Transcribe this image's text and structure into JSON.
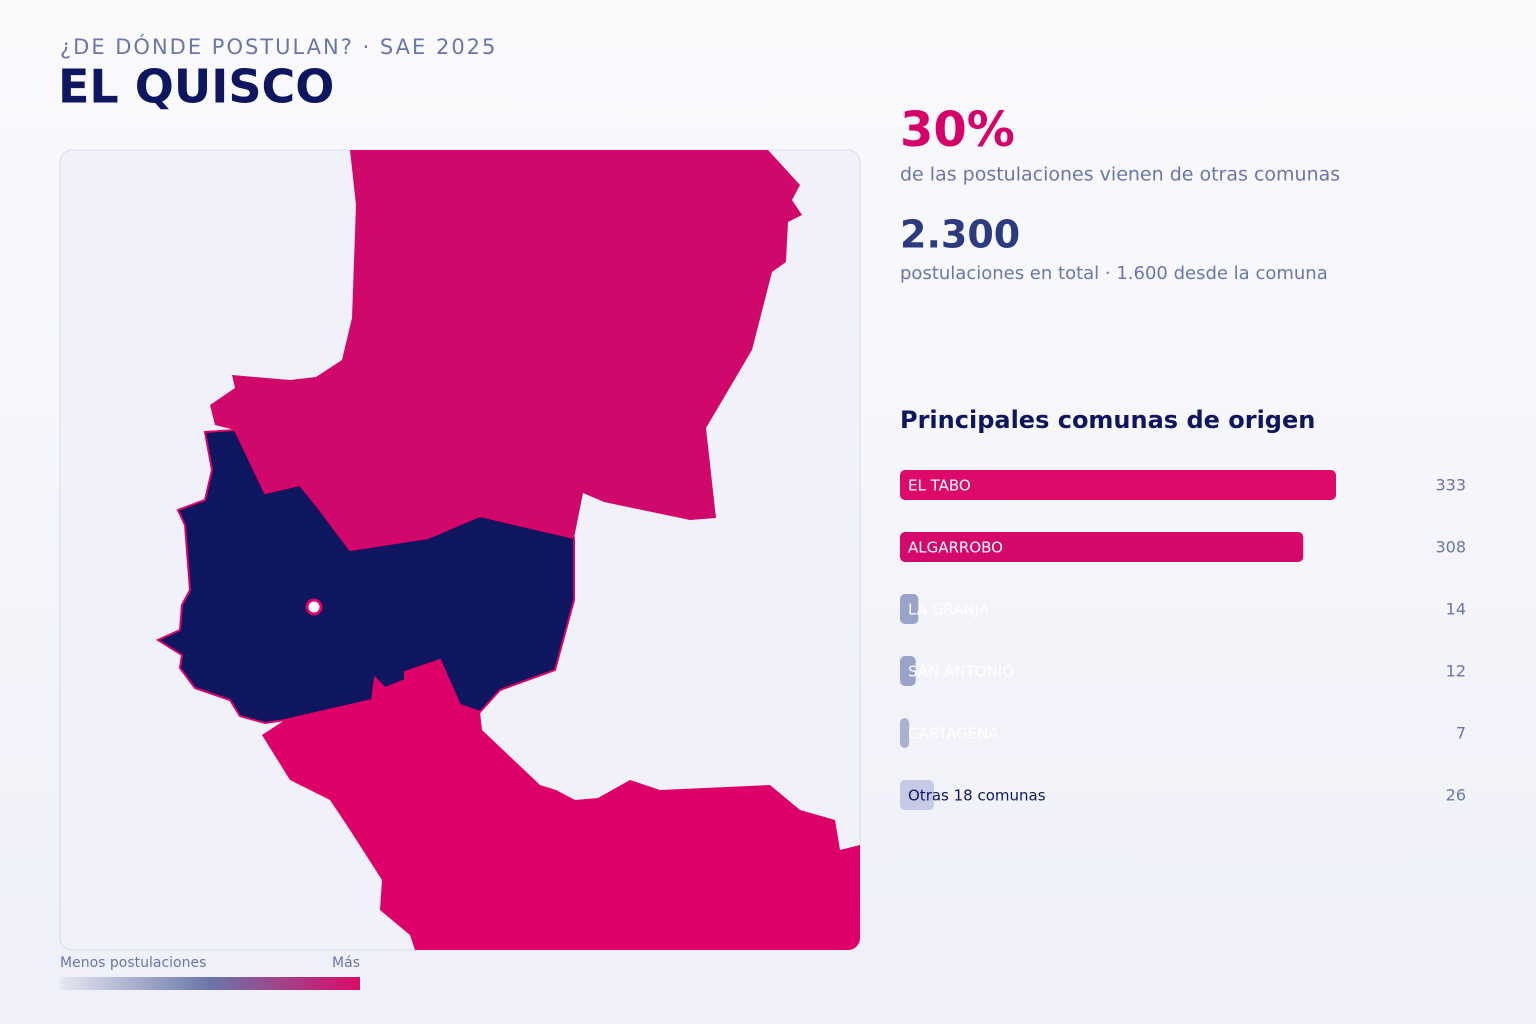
{
  "header": {
    "kicker": "¿DE DÓNDE POSTULAN? · SAE 2025",
    "title": "EL QUISCO"
  },
  "stats": [
    {
      "value": "30%",
      "label": "de las postulaciones vienen de otras comunas"
    },
    {
      "value": "2.300",
      "label": "postulaciones en total · 1.600 desde la comuna"
    }
  ],
  "legend": {
    "low": "Menos postulaciones",
    "high": "Más"
  },
  "chart_data": {
    "type": "bar",
    "orientation": "horizontal",
    "title": "Principales comunas de origen",
    "categories": [
      "EL TABO",
      "ALGARROBO",
      "LA GRANJA",
      "SAN ANTONIO",
      "CARTAGENA",
      "Otras 18 comunas"
    ],
    "values": [
      333,
      308,
      14,
      12,
      7,
      26
    ],
    "colors": [
      "#dc0a68",
      "#d5086c",
      "#9aa3c8",
      "#9aa3c8",
      "#a9b0d0",
      "#c6cae6"
    ],
    "label_colors": [
      "#ffffff",
      "#ffffff",
      "#ffffff",
      "#ffffff",
      "#ffffff",
      "#0f1660"
    ]
  }
}
